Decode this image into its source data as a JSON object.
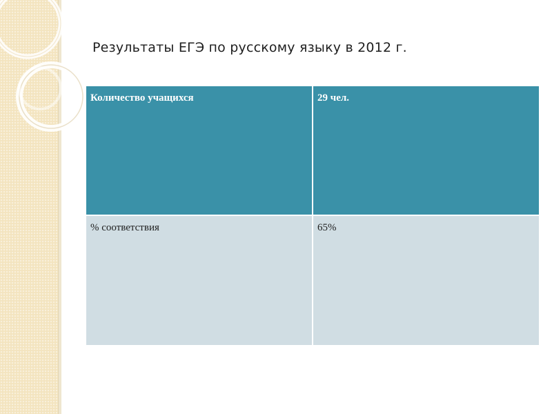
{
  "slide": {
    "title": "Результаты ЕГЭ по русскому языку в 2012 г."
  },
  "table": {
    "rows": [
      {
        "label": "Количество учащихся",
        "value": "29 чел."
      },
      {
        "label": "% соответствия",
        "value": "65%"
      }
    ]
  },
  "colors": {
    "header_fill": "#3a91a8",
    "body_fill": "#d0dde3",
    "side_band": "#f3e4bf"
  }
}
